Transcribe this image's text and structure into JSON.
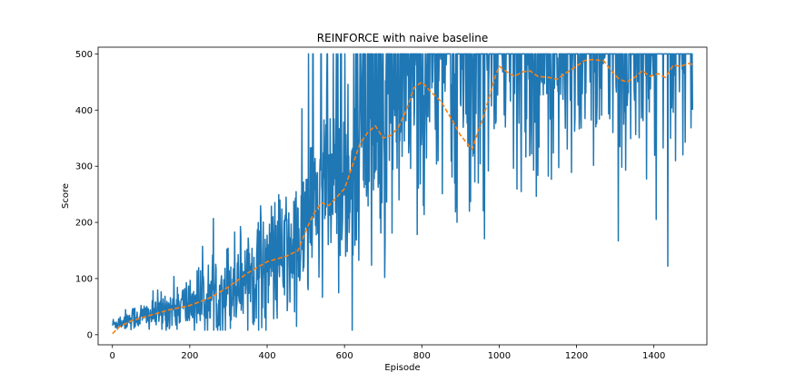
{
  "chart_data": {
    "type": "line",
    "title": "REINFORCE with naive baseline",
    "xlabel": "Episode",
    "ylabel": "Score",
    "xlim": [
      -37,
      1537
    ],
    "ylim": [
      -18,
      512
    ],
    "xticks": [
      0,
      200,
      400,
      600,
      800,
      1000,
      1200,
      1400
    ],
    "yticks": [
      0,
      100,
      200,
      300,
      400,
      500
    ],
    "grid": false,
    "legend": "none",
    "series": [
      {
        "style": "solid",
        "color": "#1f77b4",
        "anchors": [
          [
            0,
            18
          ],
          [
            50,
            30
          ],
          [
            100,
            36
          ],
          [
            150,
            46
          ],
          [
            200,
            55
          ],
          [
            250,
            65
          ],
          [
            300,
            85
          ],
          [
            350,
            110
          ],
          [
            400,
            128
          ],
          [
            450,
            140
          ],
          [
            480,
            150
          ],
          [
            500,
            200
          ],
          [
            550,
            240
          ],
          [
            600,
            255
          ],
          [
            650,
            330
          ],
          [
            700,
            350
          ],
          [
            750,
            390
          ],
          [
            800,
            430
          ],
          [
            850,
            400
          ],
          [
            900,
            360
          ],
          [
            950,
            380
          ],
          [
            1000,
            470
          ],
          [
            1050,
            470
          ],
          [
            1100,
            460
          ],
          [
            1150,
            460
          ],
          [
            1200,
            470
          ],
          [
            1250,
            480
          ],
          [
            1300,
            460
          ],
          [
            1350,
            460
          ],
          [
            1400,
            470
          ],
          [
            1450,
            470
          ],
          [
            1500,
            480
          ]
        ],
        "spread": [
          [
            0,
            10
          ],
          [
            100,
            25
          ],
          [
            200,
            45
          ],
          [
            300,
            70
          ],
          [
            400,
            90
          ],
          [
            480,
            110
          ],
          [
            550,
            150
          ],
          [
            650,
            170
          ],
          [
            750,
            190
          ],
          [
            850,
            200
          ],
          [
            950,
            200
          ],
          [
            1050,
            190
          ],
          [
            1200,
            170
          ],
          [
            1350,
            160
          ],
          [
            1500,
            150
          ]
        ]
      },
      {
        "style": "dashed",
        "color": "#ff7f0e",
        "points": [
          [
            0,
            2
          ],
          [
            20,
            15
          ],
          [
            50,
            25
          ],
          [
            100,
            35
          ],
          [
            150,
            45
          ],
          [
            200,
            52
          ],
          [
            250,
            65
          ],
          [
            300,
            85
          ],
          [
            350,
            110
          ],
          [
            400,
            130
          ],
          [
            450,
            140
          ],
          [
            480,
            150
          ],
          [
            500,
            185
          ],
          [
            520,
            215
          ],
          [
            540,
            235
          ],
          [
            560,
            230
          ],
          [
            580,
            245
          ],
          [
            600,
            260
          ],
          [
            620,
            300
          ],
          [
            640,
            340
          ],
          [
            660,
            360
          ],
          [
            680,
            372
          ],
          [
            700,
            350
          ],
          [
            720,
            355
          ],
          [
            740,
            370
          ],
          [
            760,
            400
          ],
          [
            780,
            440
          ],
          [
            800,
            450
          ],
          [
            820,
            435
          ],
          [
            850,
            415
          ],
          [
            880,
            380
          ],
          [
            900,
            355
          ],
          [
            930,
            330
          ],
          [
            960,
            390
          ],
          [
            990,
            460
          ],
          [
            1000,
            478
          ],
          [
            1020,
            468
          ],
          [
            1040,
            460
          ],
          [
            1060,
            468
          ],
          [
            1080,
            470
          ],
          [
            1100,
            460
          ],
          [
            1130,
            458
          ],
          [
            1150,
            455
          ],
          [
            1170,
            465
          ],
          [
            1200,
            478
          ],
          [
            1220,
            488
          ],
          [
            1240,
            490
          ],
          [
            1270,
            488
          ],
          [
            1290,
            470
          ],
          [
            1310,
            455
          ],
          [
            1330,
            450
          ],
          [
            1350,
            458
          ],
          [
            1370,
            470
          ],
          [
            1390,
            460
          ],
          [
            1410,
            465
          ],
          [
            1430,
            458
          ],
          [
            1450,
            480
          ],
          [
            1470,
            478
          ],
          [
            1490,
            483
          ],
          [
            1500,
            481
          ]
        ]
      }
    ]
  }
}
